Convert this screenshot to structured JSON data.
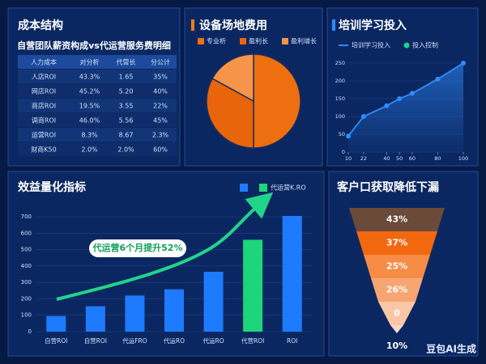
{
  "table": {
    "title": "成本结构",
    "subtitle": "自营团队薪资构成vs代运营服务费明细",
    "header": [
      "人力成本",
      "对分析",
      "代营长",
      "分公计"
    ],
    "rows": [
      [
        "人店ROI",
        "43.3%",
        "1.65",
        "35%"
      ],
      [
        "网店ROI",
        "45.2%",
        "5.20",
        "40%"
      ],
      [
        "商店ROI",
        "19.5%",
        "3.55",
        "22%"
      ],
      [
        "调商ROI",
        "46.0%",
        "5.56",
        "45%"
      ],
      [
        "运营ROI",
        "8.3%",
        "8.67",
        "2.3%"
      ],
      [
        "财商K50",
        "2.0%",
        "2.0%",
        "60%"
      ]
    ]
  },
  "chart_data": [
    {
      "type": "pie",
      "title": "设备场地费用",
      "categories": [
        "专业析",
        "盈利长",
        "盈利增长"
      ],
      "values": [
        50,
        33,
        17
      ],
      "colors": [
        "#ee6f10",
        "#e8650c",
        "#f6954a"
      ]
    },
    {
      "type": "line",
      "title": "培训学习投入",
      "series": [
        {
          "name": "培训学习投入",
          "color": "#2f8cff",
          "values": [
            45,
            100,
            130,
            150,
            165,
            205,
            250
          ]
        }
      ],
      "legend_extra": {
        "name": "投入控制",
        "color": "#22d38a"
      },
      "x": [
        10,
        22,
        40,
        50,
        60,
        80,
        100
      ],
      "xlim": [
        10,
        100
      ],
      "xticks": [
        10,
        22,
        40,
        50,
        60,
        80,
        100
      ],
      "ylim": [
        0,
        250
      ],
      "yticks": [
        0,
        50,
        100,
        150,
        200,
        250
      ],
      "grid": true
    },
    {
      "type": "bar",
      "title": "效益量化指标",
      "categories": [
        "自营ROI",
        "自营ROI",
        "代运FRO",
        "代运RO",
        "代运RO",
        "代营ROI",
        "ROI"
      ],
      "values": [
        95,
        155,
        220,
        258,
        365,
        560,
        705
      ],
      "colors": [
        "#1e7bff",
        "#1e7bff",
        "#1e7bff",
        "#1e7bff",
        "#1e7bff",
        "#1ed67a",
        "#1e7bff"
      ],
      "legend": [
        {
          "color": "#1e7bff"
        },
        {
          "name": "代运营K.RO",
          "color": "#1ed67a"
        }
      ],
      "annotation": "代运营6个月提升52%",
      "ylim": [
        0,
        700
      ],
      "yticks": [
        0,
        100,
        200,
        300,
        400,
        500,
        600,
        700
      ],
      "grid": true
    },
    {
      "type": "funnel",
      "title": "客户口获取降低下漏",
      "values": [
        43,
        37,
        25,
        26,
        0,
        10
      ],
      "value_labels": [
        "43%",
        "37%",
        "25%",
        "26%",
        "0",
        "10%"
      ],
      "colors": [
        "#6b4a3a",
        "#f2680f",
        "#f68c45",
        "#f7a673",
        "#f9c7a5",
        "#f9d9c0"
      ]
    }
  ],
  "watermark": "豆包AI生成"
}
